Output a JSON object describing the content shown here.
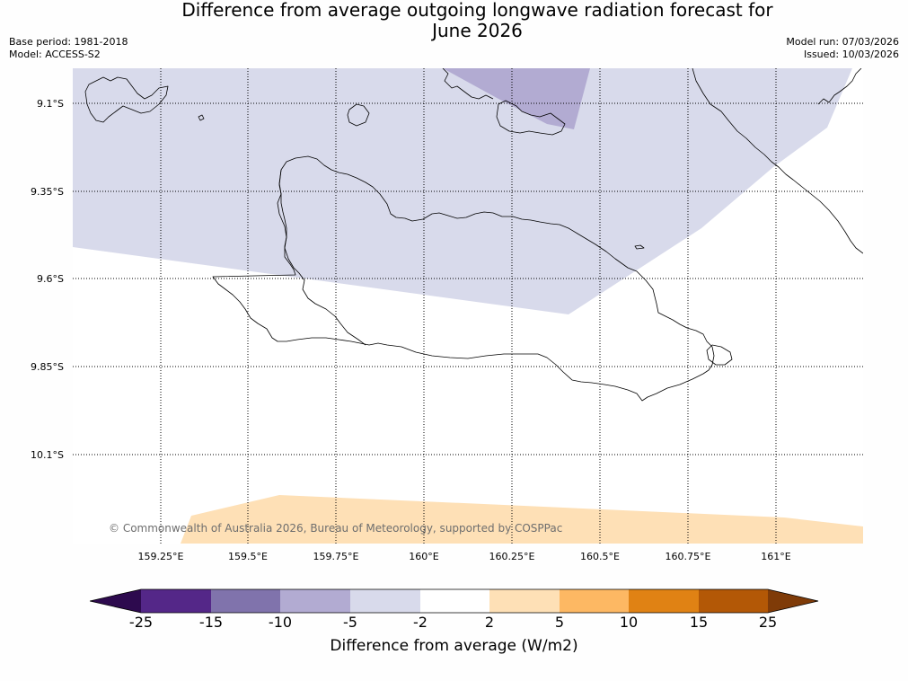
{
  "header": {
    "title_line1": "Difference from average outgoing longwave radiation forecast for",
    "title_line2": "June 2026",
    "base_period": "Base period: 1981-2018",
    "model": "Model: ACCESS-S2",
    "model_run": "Model run: 07/03/2026",
    "issued": "Issued: 10/03/2026"
  },
  "map": {
    "lat_labels": [
      "9.1°S",
      "9.35°S",
      "9.6°S",
      "9.85°S",
      "10.1°S"
    ],
    "lon_labels": [
      "159.25°E",
      "159.5°E",
      "159.75°E",
      "160°E",
      "160.25°E",
      "160.5°E",
      "160.75°E",
      "161°E"
    ],
    "copyright": "© Commonwealth of Australia 2026, Bureau of Meteorology, supported by COSPPac"
  },
  "colorbar": {
    "ticks": [
      "-25",
      "-15",
      "-10",
      "-5",
      "-2",
      "2",
      "5",
      "10",
      "15",
      "25"
    ],
    "label": "Difference from average (W/m2)",
    "colors": {
      "extend_low": "#2d0a4e",
      "b1": "#542788",
      "b2": "#8073ac",
      "b3": "#b2abd2",
      "b4": "#d8daeb",
      "b5": "#ffffff",
      "b6": "#fee0b6",
      "b7": "#fdb863",
      "b8": "#e08214",
      "b9": "#b35806",
      "extend_high": "#7f3b08"
    }
  }
}
